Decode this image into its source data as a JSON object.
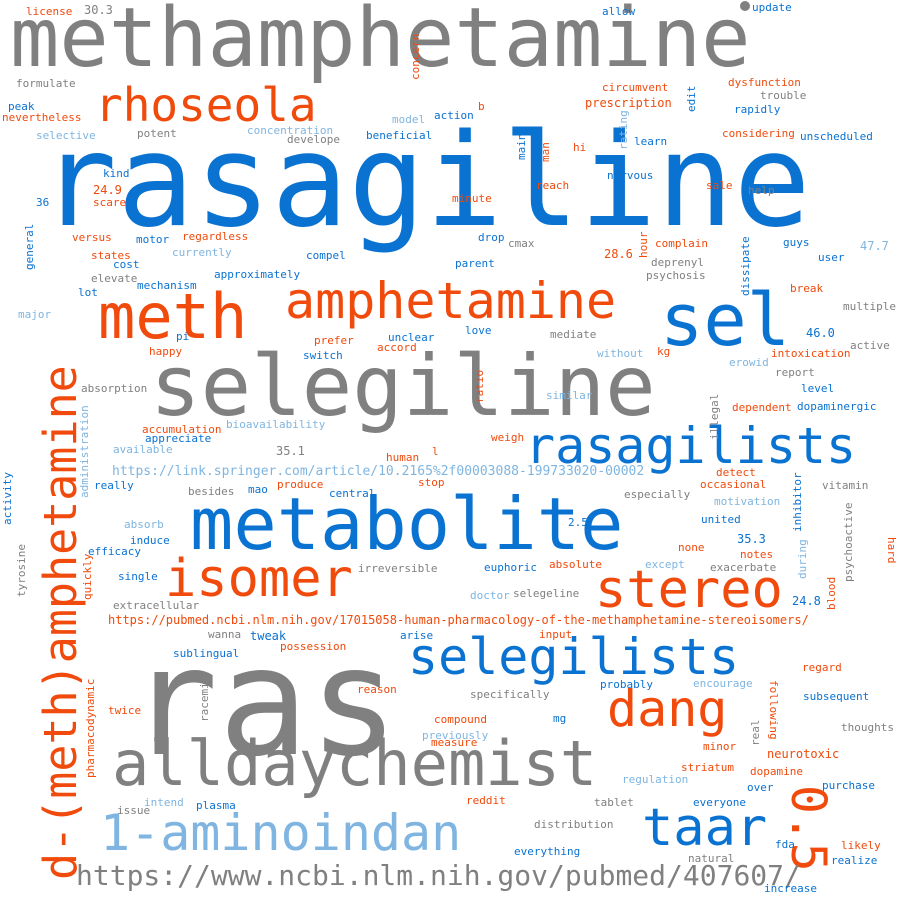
{
  "palette": {
    "gray": "#808080",
    "blue": "#0a72d1",
    "orange": "#f04a0c",
    "light": "#7fb5e0"
  },
  "words": [
    {
      "text": "methamphetamine",
      "color": "gray"
    },
    {
      "text": "rasagiline",
      "color": "blue"
    },
    {
      "text": "ras",
      "color": "gray"
    },
    {
      "text": "selegiline",
      "color": "gray"
    },
    {
      "text": "metabolite",
      "color": "blue"
    },
    {
      "text": "alldaychemist",
      "color": "gray"
    },
    {
      "text": "d-(meth)amphetamine",
      "color": "orange"
    },
    {
      "text": "amphetamine",
      "color": "orange"
    },
    {
      "text": "rasagilists",
      "color": "blue"
    },
    {
      "text": "selegilists",
      "color": "blue"
    },
    {
      "text": "1-aminoindan",
      "color": "light"
    },
    {
      "text": "rhoseola",
      "color": "orange"
    },
    {
      "text": "meth",
      "color": "orange"
    },
    {
      "text": "sel",
      "color": "blue"
    },
    {
      "text": "isomer",
      "color": "orange"
    },
    {
      "text": "stereo",
      "color": "orange"
    },
    {
      "text": "dang",
      "color": "orange"
    },
    {
      "text": "taar",
      "color": "blue"
    },
    {
      "text": "0.5",
      "color": "orange"
    },
    {
      "text": "https://www.ncbi.nlm.nih.gov/pubmed/407607/",
      "color": "gray"
    },
    {
      "text": "https://pubmed.ncbi.nlm.nih.gov/17015058-human-pharmacology-of-the-methamphetamine-stereoisomers/",
      "color": "orange"
    },
    {
      "text": "https://link.springer.com/article/10.2165%2f00003088-199733020-00002",
      "color": "light"
    },
    {
      "text": "license",
      "color": "orange"
    },
    {
      "text": "30.3",
      "color": "gray"
    },
    {
      "text": "allow",
      "color": "blue"
    },
    {
      "text": "update",
      "color": "blue"
    },
    {
      "text": "concern",
      "color": "orange"
    },
    {
      "text": "formulate",
      "color": "gray"
    },
    {
      "text": "circumvent",
      "color": "orange"
    },
    {
      "text": "dysfunction",
      "color": "orange"
    },
    {
      "text": "trouble",
      "color": "gray"
    },
    {
      "text": "peak",
      "color": "blue"
    },
    {
      "text": "nevertheless",
      "color": "orange"
    },
    {
      "text": "model",
      "color": "light"
    },
    {
      "text": "action",
      "color": "blue"
    },
    {
      "text": "b",
      "color": "orange"
    },
    {
      "text": "prescription",
      "color": "orange"
    },
    {
      "text": "edit",
      "color": "blue"
    },
    {
      "text": "rapidly",
      "color": "blue"
    },
    {
      "text": "selective",
      "color": "light"
    },
    {
      "text": "potent",
      "color": "gray"
    },
    {
      "text": "concentration",
      "color": "light"
    },
    {
      "text": "develope",
      "color": "gray"
    },
    {
      "text": "beneficial",
      "color": "blue"
    },
    {
      "text": "main",
      "color": "blue"
    },
    {
      "text": "man",
      "color": "orange"
    },
    {
      "text": "hi",
      "color": "orange"
    },
    {
      "text": "rating",
      "color": "light"
    },
    {
      "text": "learn",
      "color": "blue"
    },
    {
      "text": "considering",
      "color": "orange"
    },
    {
      "text": "unscheduled",
      "color": "blue"
    },
    {
      "text": "kind",
      "color": "blue"
    },
    {
      "text": "nervous",
      "color": "blue"
    },
    {
      "text": "24.9",
      "color": "orange"
    },
    {
      "text": "reach",
      "color": "orange"
    },
    {
      "text": "sale",
      "color": "orange"
    },
    {
      "text": "help",
      "color": "gray"
    },
    {
      "text": "36",
      "color": "blue"
    },
    {
      "text": "scare",
      "color": "orange"
    },
    {
      "text": "minute",
      "color": "orange"
    },
    {
      "text": "general",
      "color": "blue"
    },
    {
      "text": "versus",
      "color": "orange"
    },
    {
      "text": "motor",
      "color": "blue"
    },
    {
      "text": "regardless",
      "color": "orange"
    },
    {
      "text": "drop",
      "color": "blue"
    },
    {
      "text": "cmax",
      "color": "gray"
    },
    {
      "text": "hour",
      "color": "orange"
    },
    {
      "text": "complain",
      "color": "orange"
    },
    {
      "text": "dissipate",
      "color": "blue"
    },
    {
      "text": "guys",
      "color": "blue"
    },
    {
      "text": "47.7",
      "color": "light"
    },
    {
      "text": "states",
      "color": "orange"
    },
    {
      "text": "currently",
      "color": "light"
    },
    {
      "text": "compel",
      "color": "blue"
    },
    {
      "text": "28.6",
      "color": "orange"
    },
    {
      "text": "deprenyl",
      "color": "gray"
    },
    {
      "text": "user",
      "color": "blue"
    },
    {
      "text": "cost",
      "color": "blue"
    },
    {
      "text": "elevate",
      "color": "gray"
    },
    {
      "text": "approximately",
      "color": "blue"
    },
    {
      "text": "parent",
      "color": "blue"
    },
    {
      "text": "psychosis",
      "color": "gray"
    },
    {
      "text": "lot",
      "color": "blue"
    },
    {
      "text": "mechanism",
      "color": "blue"
    },
    {
      "text": "break",
      "color": "orange"
    },
    {
      "text": "multiple",
      "color": "gray"
    },
    {
      "text": "major",
      "color": "light"
    },
    {
      "text": "pi",
      "color": "blue"
    },
    {
      "text": "prefer",
      "color": "orange"
    },
    {
      "text": "unclear",
      "color": "blue"
    },
    {
      "text": "love",
      "color": "blue"
    },
    {
      "text": "mediate",
      "color": "gray"
    },
    {
      "text": "46.0",
      "color": "blue"
    },
    {
      "text": "happy",
      "color": "orange"
    },
    {
      "text": "accord",
      "color": "orange"
    },
    {
      "text": "switch",
      "color": "blue"
    },
    {
      "text": "without",
      "color": "light"
    },
    {
      "text": "kg",
      "color": "orange"
    },
    {
      "text": "intoxication",
      "color": "orange"
    },
    {
      "text": "active",
      "color": "gray"
    },
    {
      "text": "erowid",
      "color": "light"
    },
    {
      "text": "report",
      "color": "gray"
    },
    {
      "text": "absorption",
      "color": "gray"
    },
    {
      "text": "ratio",
      "color": "orange"
    },
    {
      "text": "level",
      "color": "blue"
    },
    {
      "text": "similar",
      "color": "light"
    },
    {
      "text": "dependent",
      "color": "orange"
    },
    {
      "text": "dopaminergic",
      "color": "blue"
    },
    {
      "text": "accumulation",
      "color": "orange"
    },
    {
      "text": "bioavailability",
      "color": "light"
    },
    {
      "text": "appreciate",
      "color": "blue"
    },
    {
      "text": "available",
      "color": "light"
    },
    {
      "text": "35.1",
      "color": "gray"
    },
    {
      "text": "weigh",
      "color": "orange"
    },
    {
      "text": "l",
      "color": "orange"
    },
    {
      "text": "human",
      "color": "orange"
    },
    {
      "text": "illegal",
      "color": "gray"
    },
    {
      "text": "administration",
      "color": "light"
    },
    {
      "text": "activity",
      "color": "blue"
    },
    {
      "text": "really",
      "color": "blue"
    },
    {
      "text": "besides",
      "color": "gray"
    },
    {
      "text": "mao",
      "color": "blue"
    },
    {
      "text": "produce",
      "color": "orange"
    },
    {
      "text": "central",
      "color": "blue"
    },
    {
      "text": "stop",
      "color": "orange"
    },
    {
      "text": "detect",
      "color": "orange"
    },
    {
      "text": "occasional",
      "color": "orange"
    },
    {
      "text": "especially",
      "color": "gray"
    },
    {
      "text": "vitamin",
      "color": "gray"
    },
    {
      "text": "motivation",
      "color": "light"
    },
    {
      "text": "inhibitor",
      "color": "blue"
    },
    {
      "text": "united",
      "color": "blue"
    },
    {
      "text": "absorb",
      "color": "light"
    },
    {
      "text": "2.5",
      "color": "blue"
    },
    {
      "text": "psychoactive",
      "color": "gray"
    },
    {
      "text": "induce",
      "color": "blue"
    },
    {
      "text": "35.3",
      "color": "blue"
    },
    {
      "text": "efficacy",
      "color": "blue"
    },
    {
      "text": "none",
      "color": "orange"
    },
    {
      "text": "notes",
      "color": "orange"
    },
    {
      "text": "hard",
      "color": "orange"
    },
    {
      "text": "tyrosine",
      "color": "gray"
    },
    {
      "text": "irreversible",
      "color": "gray"
    },
    {
      "text": "euphoric",
      "color": "blue"
    },
    {
      "text": "absolute",
      "color": "orange"
    },
    {
      "text": "except",
      "color": "light"
    },
    {
      "text": "exacerbate",
      "color": "gray"
    },
    {
      "text": "during",
      "color": "light"
    },
    {
      "text": "single",
      "color": "blue"
    },
    {
      "text": "quickly",
      "color": "orange"
    },
    {
      "text": "blood",
      "color": "orange"
    },
    {
      "text": "doctor",
      "color": "light"
    },
    {
      "text": "selegeline",
      "color": "gray"
    },
    {
      "text": "24.8",
      "color": "blue"
    },
    {
      "text": "extracellular",
      "color": "gray"
    },
    {
      "text": "wanna",
      "color": "gray"
    },
    {
      "text": "tweak",
      "color": "blue"
    },
    {
      "text": "arise",
      "color": "blue"
    },
    {
      "text": "input",
      "color": "orange"
    },
    {
      "text": "sublingual",
      "color": "blue"
    },
    {
      "text": "possession",
      "color": "orange"
    },
    {
      "text": "regard",
      "color": "orange"
    },
    {
      "text": "probably",
      "color": "blue"
    },
    {
      "text": "reason",
      "color": "orange"
    },
    {
      "text": "encourage",
      "color": "light"
    },
    {
      "text": "racemic",
      "color": "gray"
    },
    {
      "text": "specifically",
      "color": "gray"
    },
    {
      "text": "following",
      "color": "orange"
    },
    {
      "text": "subsequent",
      "color": "blue"
    },
    {
      "text": "pharmacodynamic",
      "color": "orange"
    },
    {
      "text": "twice",
      "color": "orange"
    },
    {
      "text": "compound",
      "color": "orange"
    },
    {
      "text": "mg",
      "color": "blue"
    },
    {
      "text": "thoughts",
      "color": "gray"
    },
    {
      "text": "previously",
      "color": "light"
    },
    {
      "text": "measure",
      "color": "orange"
    },
    {
      "text": "real",
      "color": "gray"
    },
    {
      "text": "minor",
      "color": "orange"
    },
    {
      "text": "neurotoxic",
      "color": "orange"
    },
    {
      "text": "striatum",
      "color": "orange"
    },
    {
      "text": "dopamine",
      "color": "orange"
    },
    {
      "text": "regulation",
      "color": "light"
    },
    {
      "text": "intend",
      "color": "light"
    },
    {
      "text": "plasma",
      "color": "blue"
    },
    {
      "text": "issue",
      "color": "gray"
    },
    {
      "text": "reddit",
      "color": "orange"
    },
    {
      "text": "tablet",
      "color": "gray"
    },
    {
      "text": "everyone",
      "color": "blue"
    },
    {
      "text": "over",
      "color": "blue"
    },
    {
      "text": "purchase",
      "color": "blue"
    },
    {
      "text": "distribution",
      "color": "gray"
    },
    {
      "text": "fda",
      "color": "blue"
    },
    {
      "text": "likely",
      "color": "orange"
    },
    {
      "text": "everything",
      "color": "blue"
    },
    {
      "text": "natural",
      "color": "gray"
    },
    {
      "text": "realize",
      "color": "blue"
    },
    {
      "text": "increase",
      "color": "blue"
    }
  ]
}
